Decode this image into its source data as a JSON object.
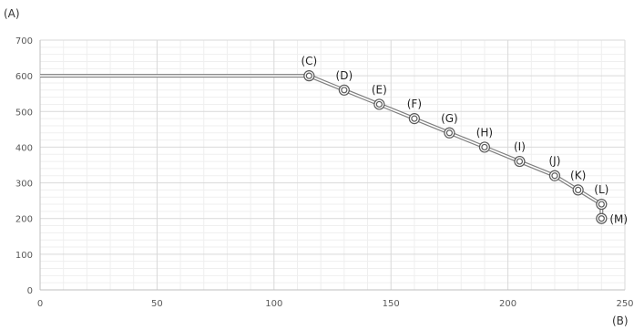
{
  "chart_data": {
    "type": "line",
    "title": "",
    "xlabel": "(B)",
    "ylabel": "(A)",
    "xlim": [
      0,
      250
    ],
    "ylim": [
      0,
      700
    ],
    "x_ticks": [
      0,
      50,
      100,
      150,
      200,
      250
    ],
    "y_ticks": [
      0,
      100,
      200,
      300,
      400,
      500,
      600,
      700
    ],
    "grid": true,
    "legend": "none",
    "series": [
      {
        "points": [
          {
            "x": 0,
            "y": 600,
            "label": ""
          },
          {
            "x": 115,
            "y": 600,
            "label": "(C)"
          },
          {
            "x": 130,
            "y": 560,
            "label": "(D)"
          },
          {
            "x": 145,
            "y": 520,
            "label": "(E)"
          },
          {
            "x": 160,
            "y": 480,
            "label": "(F)"
          },
          {
            "x": 175,
            "y": 440,
            "label": "(G)"
          },
          {
            "x": 190,
            "y": 400,
            "label": "(H)"
          },
          {
            "x": 205,
            "y": 360,
            "label": "(I)"
          },
          {
            "x": 220,
            "y": 320,
            "label": "(J)"
          },
          {
            "x": 230,
            "y": 280,
            "label": "(K)"
          },
          {
            "x": 240,
            "y": 240,
            "label": "(L)"
          },
          {
            "x": 240,
            "y": 200,
            "label": "(M)"
          }
        ]
      }
    ],
    "colors": {
      "line": "#7f7f7f",
      "marker": "#595959",
      "major_grid": "#d9d9d9",
      "minor_grid": "#efefef"
    }
  }
}
